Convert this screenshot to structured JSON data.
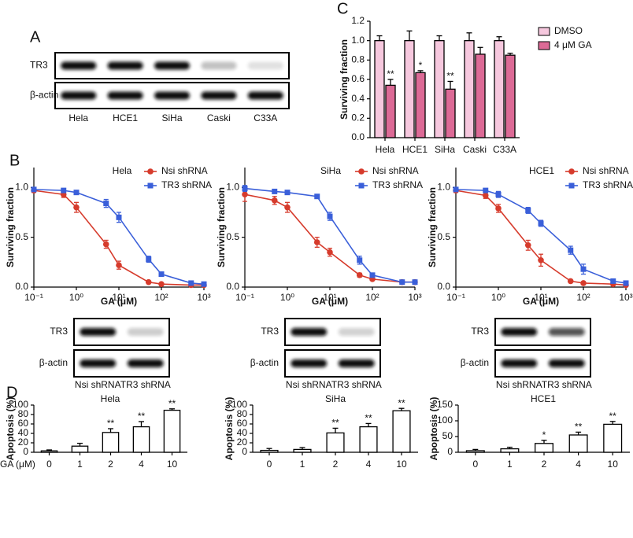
{
  "panels": [
    "A",
    "B",
    "C",
    "D"
  ],
  "blots": [
    {
      "rows": [
        "TR3",
        "β-actin"
      ],
      "lanes": [
        "Hela",
        "HCE1",
        "SiHa",
        "Caski",
        "C33A"
      ]
    },
    {
      "rows": [
        "TR3",
        "β-actin"
      ],
      "lanes": [
        "Nsi shRNA",
        "TR3 shRNA"
      ]
    },
    {
      "rows": [
        "TR3",
        "β-actin"
      ],
      "lanes": [
        "Nsi shRNA",
        "TR3 shRNA"
      ]
    },
    {
      "rows": [
        "TR3",
        "β-actin"
      ],
      "lanes": [
        "Nsi shRNA",
        "TR3 shRNA"
      ]
    }
  ],
  "chart_data": [
    {
      "type": "bar",
      "ylabel": "Surviving fraction",
      "categories": [
        "Hela",
        "HCE1",
        "SiHa",
        "Caski",
        "C33A"
      ],
      "series": [
        {
          "name": "DMSO",
          "color": "#f6c8de",
          "values": [
            1.0,
            1.0,
            1.0,
            1.0,
            1.0
          ],
          "errors": [
            0.05,
            0.1,
            0.05,
            0.08,
            0.04
          ],
          "significance": [
            null,
            null,
            null,
            null,
            null
          ]
        },
        {
          "name": "4 μM GA",
          "color": "#dc6a96",
          "values": [
            0.54,
            0.67,
            0.5,
            0.86,
            0.85
          ],
          "errors": [
            0.06,
            0.02,
            0.08,
            0.07,
            0.02
          ],
          "significance": [
            "**",
            "*",
            "**",
            null,
            null
          ]
        }
      ],
      "ylim": [
        0,
        1.2
      ],
      "yticks": [
        {
          "value": 0,
          "label": "0.0"
        },
        {
          "value": 0.2,
          "label": "0.2"
        },
        {
          "value": 0.4,
          "label": "0.4"
        },
        {
          "value": 0.6,
          "label": "0.6"
        },
        {
          "value": 0.8,
          "label": "0.8"
        },
        {
          "value": 1.0,
          "label": "1.0"
        },
        {
          "value": 1.2,
          "label": "1.2"
        }
      ],
      "legend": "right"
    },
    {
      "type": "line",
      "title": "Hela",
      "xlabel": "GA (μM)",
      "ylabel": "Surviving fraction",
      "log_x": true,
      "x": [
        0.1,
        0.5,
        1,
        5,
        10,
        50,
        100,
        500,
        1000
      ],
      "series": [
        {
          "name": "Nsi shRNA",
          "color": "#d63b2c",
          "marker": "circle",
          "values": [
            0.97,
            0.93,
            0.8,
            0.43,
            0.22,
            0.05,
            0.03,
            0.02,
            0.02
          ],
          "errors": [
            0.02,
            0.03,
            0.05,
            0.04,
            0.04,
            0.01,
            0.01,
            0.01,
            0.01
          ]
        },
        {
          "name": "TR3 shRNA",
          "color": "#3a5fd9",
          "marker": "square",
          "values": [
            0.98,
            0.97,
            0.95,
            0.84,
            0.7,
            0.28,
            0.13,
            0.04,
            0.03
          ],
          "errors": [
            0.02,
            0.02,
            0.02,
            0.04,
            0.05,
            0.03,
            0.02,
            0.01,
            0.01
          ]
        }
      ],
      "xlim": [
        0.1,
        1000
      ],
      "xticks": [
        {
          "value": 0.1,
          "label": "10⁻¹"
        },
        {
          "value": 1,
          "label": "10⁰"
        },
        {
          "value": 10,
          "label": "10¹"
        },
        {
          "value": 100,
          "label": "10²"
        },
        {
          "value": 1000,
          "label": "10³"
        }
      ],
      "ylim": [
        0,
        1.2
      ],
      "yticks": [
        {
          "value": 0,
          "label": "0.0"
        },
        {
          "value": 0.5,
          "label": "0.5"
        },
        {
          "value": 1.0,
          "label": "1.0"
        }
      ],
      "legend": "upper right"
    },
    {
      "type": "line",
      "title": "SiHa",
      "xlabel": "GA (μM)",
      "ylabel": "Surviving fraction",
      "log_x": true,
      "x": [
        0.1,
        0.5,
        1,
        5,
        10,
        50,
        100,
        500,
        1000
      ],
      "series": [
        {
          "name": "Nsi shRNA",
          "color": "#d63b2c",
          "marker": "circle",
          "values": [
            0.93,
            0.87,
            0.8,
            0.45,
            0.35,
            0.12,
            0.08,
            0.05,
            0.05
          ],
          "errors": [
            0.07,
            0.04,
            0.05,
            0.05,
            0.04,
            0.02,
            0.01,
            0.01,
            0.01
          ]
        },
        {
          "name": "TR3 shRNA",
          "color": "#3a5fd9",
          "marker": "square",
          "values": [
            0.99,
            0.96,
            0.95,
            0.91,
            0.71,
            0.27,
            0.12,
            0.05,
            0.05
          ],
          "errors": [
            0.03,
            0.02,
            0.02,
            0.02,
            0.04,
            0.04,
            0.02,
            0.01,
            0.01
          ]
        }
      ],
      "xlim": [
        0.1,
        1000
      ],
      "xticks": [
        {
          "value": 0.1,
          "label": "10⁻¹"
        },
        {
          "value": 1,
          "label": "10⁰"
        },
        {
          "value": 10,
          "label": "10¹"
        },
        {
          "value": 100,
          "label": "10²"
        },
        {
          "value": 1000,
          "label": "10³"
        }
      ],
      "ylim": [
        0,
        1.2
      ],
      "yticks": [
        {
          "value": 0,
          "label": "0.0"
        },
        {
          "value": 0.5,
          "label": "0.5"
        },
        {
          "value": 1.0,
          "label": "1.0"
        }
      ],
      "legend": "upper right"
    },
    {
      "type": "line",
      "title": "HCE1",
      "xlabel": "GA (μM)",
      "ylabel": "Surviving fraction",
      "log_x": true,
      "x": [
        0.1,
        0.5,
        1,
        5,
        10,
        50,
        100,
        500,
        1000
      ],
      "series": [
        {
          "name": "Nsi shRNA",
          "color": "#d63b2c",
          "marker": "circle",
          "values": [
            0.97,
            0.92,
            0.79,
            0.42,
            0.27,
            0.06,
            0.04,
            0.03,
            0.02
          ],
          "errors": [
            0.02,
            0.03,
            0.04,
            0.05,
            0.06,
            0.01,
            0.01,
            0.01,
            0.01
          ]
        },
        {
          "name": "TR3 shRNA",
          "color": "#3a5fd9",
          "marker": "square",
          "values": [
            0.98,
            0.97,
            0.93,
            0.77,
            0.64,
            0.37,
            0.18,
            0.06,
            0.04
          ],
          "errors": [
            0.02,
            0.02,
            0.03,
            0.03,
            0.03,
            0.04,
            0.05,
            0.02,
            0.01
          ]
        }
      ],
      "xlim": [
        0.1,
        1000
      ],
      "xticks": [
        {
          "value": 0.1,
          "label": "10⁻¹"
        },
        {
          "value": 1,
          "label": "10⁰"
        },
        {
          "value": 10,
          "label": "10¹"
        },
        {
          "value": 100,
          "label": "10²"
        },
        {
          "value": 1000,
          "label": "10³"
        }
      ],
      "ylim": [
        0,
        1.2
      ],
      "yticks": [
        {
          "value": 0,
          "label": "0.0"
        },
        {
          "value": 0.5,
          "label": "0.5"
        },
        {
          "value": 1.0,
          "label": "1.0"
        }
      ],
      "legend": "upper right"
    },
    {
      "type": "bar",
      "title": "Hela",
      "xlabel": "GA (μM)",
      "ylabel": "Apoptosis (%)",
      "color": "#ffffff",
      "categories": [
        "0",
        "1",
        "2",
        "4",
        "10"
      ],
      "values": [
        3,
        13,
        42,
        54,
        89
      ],
      "errors": [
        2,
        6,
        8,
        11,
        3
      ],
      "significance": [
        null,
        null,
        "**",
        "**",
        "**"
      ],
      "ylim": [
        0,
        100
      ],
      "yticks": [
        0,
        20,
        40,
        60,
        80,
        100
      ]
    },
    {
      "type": "bar",
      "title": "SiHa",
      "ylabel": "Apoptosis (%)",
      "color": "#ffffff",
      "categories": [
        "0",
        "1",
        "2",
        "4",
        "10"
      ],
      "values": [
        4,
        6,
        41,
        54,
        88
      ],
      "errors": [
        4,
        4,
        10,
        7,
        5
      ],
      "significance": [
        null,
        null,
        "**",
        "**",
        "**"
      ],
      "ylim": [
        0,
        100
      ],
      "yticks": [
        0,
        20,
        40,
        60,
        80,
        100
      ]
    },
    {
      "type": "bar",
      "title": "HCE1",
      "ylabel": "Apoptosis (%)",
      "color": "#ffffff",
      "categories": [
        "0",
        "1",
        "2",
        "4",
        "10"
      ],
      "values": [
        5,
        11,
        28,
        55,
        89
      ],
      "errors": [
        4,
        5,
        10,
        9,
        9
      ],
      "significance": [
        null,
        null,
        "*",
        "**",
        "**"
      ],
      "ylim": [
        0,
        150
      ],
      "yticks": [
        0,
        50,
        100,
        150
      ]
    }
  ]
}
